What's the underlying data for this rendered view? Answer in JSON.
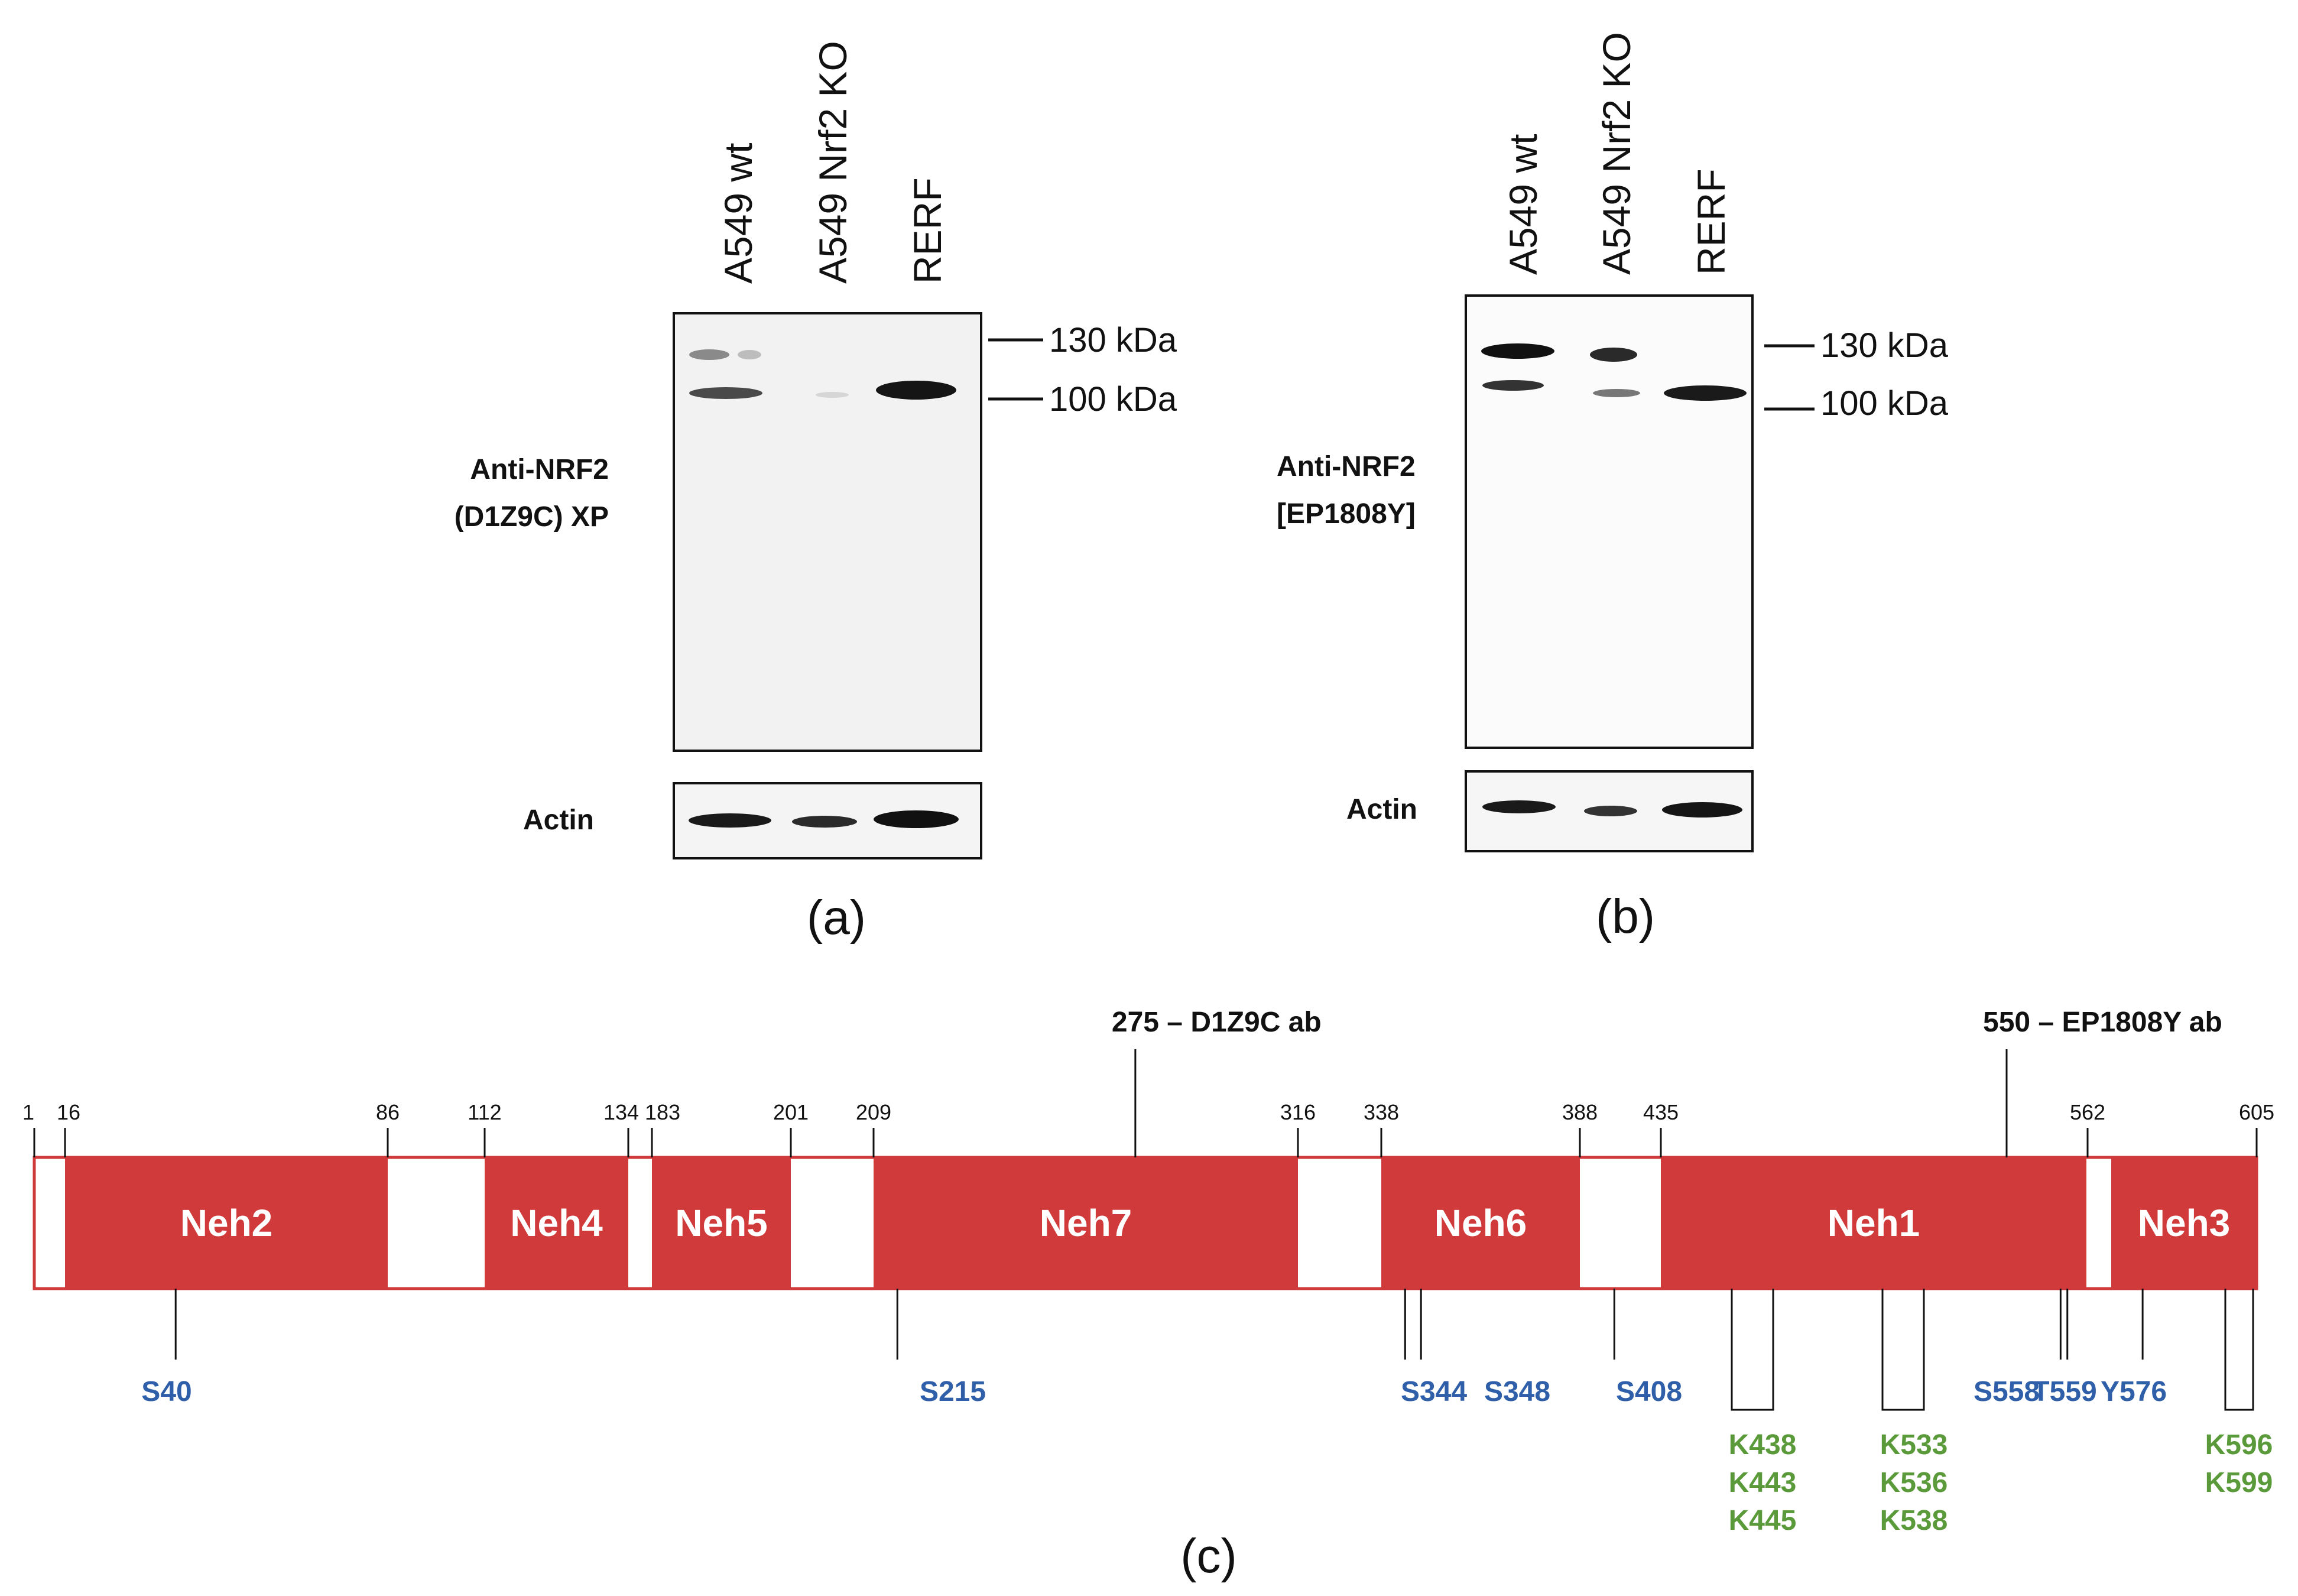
{
  "panel_a": {
    "lanes": [
      "A549 wt",
      "A549 Nrf2 KO",
      "RERF"
    ],
    "markers": [
      "130 kDa",
      "100 kDa"
    ],
    "antibody_line1": "Anti-NRF2",
    "antibody_line2": "(D1Z9C) XP",
    "loading_control": "Actin",
    "label": "(a)"
  },
  "panel_b": {
    "lanes": [
      "A549 wt",
      "A549 Nrf2 KO",
      "RERF"
    ],
    "markers": [
      "130 kDa",
      "100 kDa"
    ],
    "antibody_line1": "Anti-NRF2",
    "antibody_line2": "[EP1808Y]",
    "loading_control": "Actin",
    "label": "(b)"
  },
  "panel_c": {
    "label": "(c)",
    "length": 605,
    "antibody_sites": [
      {
        "pos": 275,
        "label": "275 – D1Z9C ab"
      },
      {
        "pos": 550,
        "label": "550 – EP1808Y ab"
      }
    ],
    "boundaries": [
      1,
      16,
      86,
      112,
      134,
      183,
      201,
      209,
      316,
      338,
      388,
      435,
      562,
      605
    ],
    "domains": [
      {
        "name": "Neh2",
        "start": 16,
        "end": 86
      },
      {
        "name": "Neh4",
        "start": 112,
        "end": 134
      },
      {
        "name": "Neh5",
        "start": 183,
        "end": 201
      },
      {
        "name": "Neh7",
        "start": 209,
        "end": 316
      },
      {
        "name": "Neh6",
        "start": 338,
        "end": 388
      },
      {
        "name": "Neh1",
        "start": 435,
        "end": 562
      },
      {
        "name": "Neh3",
        "start": 562,
        "end": 605
      }
    ],
    "phospho_sites": [
      "S40",
      "S215",
      "S344",
      "S348",
      "S408",
      "S558",
      "T559",
      "Y576"
    ],
    "ubiquitin_groups": [
      [
        "K438",
        "K443",
        "K445"
      ],
      [
        "K533",
        "K536",
        "K538"
      ],
      [
        "K596",
        "K599"
      ]
    ],
    "colors": {
      "domain_fill": "#d03a3a",
      "linker_stroke": "#d03a3a",
      "phospho": "#2f5fa8",
      "ubiquitin": "#5a9a3a"
    }
  }
}
